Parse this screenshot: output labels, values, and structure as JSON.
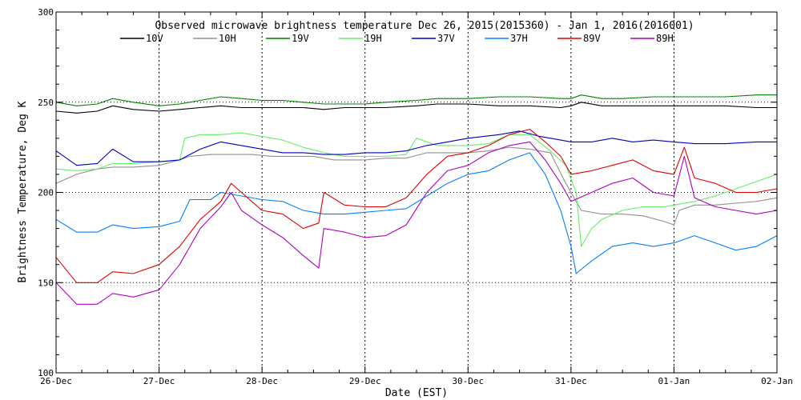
{
  "chart_data": {
    "type": "line",
    "title": "Observed microwave brightness temperature Dec 26, 2015(2015360) - Jan  1, 2016(2016001)",
    "xlabel": "Date (EST)",
    "ylabel": "Brightness Temperature, Deg K",
    "ylim": [
      100,
      300
    ],
    "yticks": [
      100,
      150,
      200,
      250,
      300
    ],
    "xlim": [
      0,
      7
    ],
    "xtick_labels": [
      "26-Dec",
      "27-Dec",
      "28-Dec",
      "29-Dec",
      "30-Dec",
      "31-Dec",
      "01-Jan",
      "02-Jan"
    ],
    "grid": "dotted",
    "legend_position": "top",
    "series": [
      {
        "name": "10V",
        "color": "#000000",
        "points": [
          [
            0,
            245
          ],
          [
            0.2,
            244
          ],
          [
            0.4,
            245
          ],
          [
            0.55,
            248
          ],
          [
            0.75,
            246
          ],
          [
            1,
            245
          ],
          [
            1.2,
            246
          ],
          [
            1.4,
            247
          ],
          [
            1.6,
            248
          ],
          [
            1.8,
            247
          ],
          [
            2,
            247
          ],
          [
            2.2,
            247
          ],
          [
            2.4,
            247
          ],
          [
            2.6,
            246
          ],
          [
            2.8,
            247
          ],
          [
            3,
            247
          ],
          [
            3.2,
            247
          ],
          [
            3.5,
            248
          ],
          [
            3.7,
            249
          ],
          [
            4,
            249
          ],
          [
            4.3,
            248
          ],
          [
            4.6,
            248
          ],
          [
            4.9,
            247
          ],
          [
            5,
            248
          ],
          [
            5.1,
            250
          ],
          [
            5.3,
            248
          ],
          [
            5.5,
            248
          ],
          [
            5.8,
            248
          ],
          [
            6,
            248
          ],
          [
            6.2,
            248
          ],
          [
            6.5,
            248
          ],
          [
            6.8,
            247
          ],
          [
            7,
            247
          ]
        ]
      },
      {
        "name": "10H",
        "color": "#909090",
        "points": [
          [
            0,
            205
          ],
          [
            0.2,
            210
          ],
          [
            0.4,
            213
          ],
          [
            0.55,
            214
          ],
          [
            0.75,
            214
          ],
          [
            1,
            215
          ],
          [
            1.2,
            218
          ],
          [
            1.3,
            220
          ],
          [
            1.5,
            221
          ],
          [
            1.7,
            221
          ],
          [
            1.9,
            221
          ],
          [
            2.1,
            220
          ],
          [
            2.3,
            220
          ],
          [
            2.5,
            220
          ],
          [
            2.7,
            218
          ],
          [
            3,
            218
          ],
          [
            3.2,
            219
          ],
          [
            3.4,
            219
          ],
          [
            3.6,
            222
          ],
          [
            3.8,
            222
          ],
          [
            4,
            222
          ],
          [
            4.2,
            223
          ],
          [
            4.4,
            225
          ],
          [
            4.6,
            224
          ],
          [
            4.8,
            222
          ],
          [
            4.95,
            205
          ],
          [
            5.1,
            190
          ],
          [
            5.3,
            188
          ],
          [
            5.5,
            188
          ],
          [
            5.7,
            187
          ],
          [
            5.9,
            184
          ],
          [
            6,
            182
          ],
          [
            6.05,
            190
          ],
          [
            6.2,
            193
          ],
          [
            6.4,
            193
          ],
          [
            6.6,
            194
          ],
          [
            6.8,
            195
          ],
          [
            7,
            197
          ]
        ]
      },
      {
        "name": "19V",
        "color": "#008000",
        "points": [
          [
            0,
            250
          ],
          [
            0.2,
            248
          ],
          [
            0.4,
            249
          ],
          [
            0.55,
            252
          ],
          [
            0.75,
            250
          ],
          [
            1,
            248
          ],
          [
            1.2,
            249
          ],
          [
            1.4,
            251
          ],
          [
            1.6,
            253
          ],
          [
            1.8,
            252
          ],
          [
            2,
            251
          ],
          [
            2.2,
            251
          ],
          [
            2.4,
            250
          ],
          [
            2.6,
            249
          ],
          [
            2.8,
            249
          ],
          [
            3,
            249
          ],
          [
            3.2,
            250
          ],
          [
            3.5,
            251
          ],
          [
            3.7,
            252
          ],
          [
            4,
            252
          ],
          [
            4.3,
            253
          ],
          [
            4.6,
            253
          ],
          [
            4.9,
            252
          ],
          [
            5,
            252
          ],
          [
            5.1,
            254
          ],
          [
            5.3,
            252
          ],
          [
            5.5,
            252
          ],
          [
            5.8,
            253
          ],
          [
            6,
            253
          ],
          [
            6.2,
            253
          ],
          [
            6.5,
            253
          ],
          [
            6.8,
            254
          ],
          [
            7,
            254
          ]
        ]
      },
      {
        "name": "19H",
        "color": "#66ee66",
        "points": [
          [
            0,
            213
          ],
          [
            0.2,
            212
          ],
          [
            0.4,
            213
          ],
          [
            0.55,
            216
          ],
          [
            0.75,
            216
          ],
          [
            1,
            217
          ],
          [
            1.2,
            218
          ],
          [
            1.25,
            230
          ],
          [
            1.4,
            232
          ],
          [
            1.6,
            232
          ],
          [
            1.8,
            233
          ],
          [
            2,
            231
          ],
          [
            2.2,
            229
          ],
          [
            2.4,
            225
          ],
          [
            2.6,
            222
          ],
          [
            2.8,
            220
          ],
          [
            3,
            220
          ],
          [
            3.2,
            220
          ],
          [
            3.4,
            221
          ],
          [
            3.5,
            230
          ],
          [
            3.7,
            226
          ],
          [
            4,
            226
          ],
          [
            4.2,
            227
          ],
          [
            4.4,
            232
          ],
          [
            4.6,
            232
          ],
          [
            4.8,
            223
          ],
          [
            4.95,
            215
          ],
          [
            5.05,
            200
          ],
          [
            5.1,
            170
          ],
          [
            5.2,
            180
          ],
          [
            5.3,
            185
          ],
          [
            5.5,
            190
          ],
          [
            5.7,
            192
          ],
          [
            5.9,
            192
          ],
          [
            6,
            193
          ],
          [
            6.2,
            195
          ],
          [
            6.4,
            198
          ],
          [
            6.6,
            202
          ],
          [
            6.8,
            206
          ],
          [
            7,
            210
          ]
        ]
      },
      {
        "name": "37V",
        "color": "#0000c0",
        "points": [
          [
            0,
            223
          ],
          [
            0.2,
            215
          ],
          [
            0.4,
            216
          ],
          [
            0.55,
            224
          ],
          [
            0.75,
            217
          ],
          [
            1,
            217
          ],
          [
            1.2,
            218
          ],
          [
            1.4,
            224
          ],
          [
            1.6,
            228
          ],
          [
            1.8,
            226
          ],
          [
            2,
            224
          ],
          [
            2.2,
            222
          ],
          [
            2.4,
            222
          ],
          [
            2.6,
            221
          ],
          [
            2.8,
            221
          ],
          [
            3,
            222
          ],
          [
            3.2,
            222
          ],
          [
            3.4,
            223
          ],
          [
            3.6,
            226
          ],
          [
            3.8,
            228
          ],
          [
            4,
            230
          ],
          [
            4.3,
            232
          ],
          [
            4.5,
            234
          ],
          [
            4.7,
            231
          ],
          [
            4.9,
            229
          ],
          [
            5,
            228
          ],
          [
            5.2,
            228
          ],
          [
            5.4,
            230
          ],
          [
            5.6,
            228
          ],
          [
            5.8,
            229
          ],
          [
            6,
            228
          ],
          [
            6.2,
            227
          ],
          [
            6.5,
            227
          ],
          [
            6.8,
            228
          ],
          [
            7,
            228
          ]
        ]
      },
      {
        "name": "37H",
        "color": "#0080ff",
        "points": [
          [
            0,
            185
          ],
          [
            0.2,
            178
          ],
          [
            0.4,
            178
          ],
          [
            0.55,
            182
          ],
          [
            0.75,
            180
          ],
          [
            1,
            181
          ],
          [
            1.2,
            184
          ],
          [
            1.3,
            196
          ],
          [
            1.5,
            196
          ],
          [
            1.6,
            200
          ],
          [
            1.8,
            198
          ],
          [
            2,
            196
          ],
          [
            2.2,
            195
          ],
          [
            2.4,
            190
          ],
          [
            2.6,
            188
          ],
          [
            2.8,
            188
          ],
          [
            3,
            189
          ],
          [
            3.2,
            190
          ],
          [
            3.4,
            191
          ],
          [
            3.6,
            198
          ],
          [
            3.8,
            205
          ],
          [
            4,
            210
          ],
          [
            4.2,
            212
          ],
          [
            4.4,
            218
          ],
          [
            4.6,
            222
          ],
          [
            4.75,
            210
          ],
          [
            4.9,
            190
          ],
          [
            5,
            170
          ],
          [
            5.05,
            155
          ],
          [
            5.2,
            162
          ],
          [
            5.4,
            170
          ],
          [
            5.6,
            172
          ],
          [
            5.8,
            170
          ],
          [
            6,
            172
          ],
          [
            6.2,
            176
          ],
          [
            6.4,
            172
          ],
          [
            6.6,
            168
          ],
          [
            6.8,
            170
          ],
          [
            7,
            176
          ]
        ]
      },
      {
        "name": "89V",
        "color": "#dd0000",
        "points": [
          [
            0,
            164
          ],
          [
            0.2,
            150
          ],
          [
            0.4,
            150
          ],
          [
            0.55,
            156
          ],
          [
            0.75,
            155
          ],
          [
            1,
            160
          ],
          [
            1.2,
            170
          ],
          [
            1.4,
            185
          ],
          [
            1.6,
            195
          ],
          [
            1.7,
            205
          ],
          [
            1.8,
            200
          ],
          [
            2,
            190
          ],
          [
            2.2,
            188
          ],
          [
            2.4,
            180
          ],
          [
            2.55,
            183
          ],
          [
            2.6,
            200
          ],
          [
            2.8,
            193
          ],
          [
            3,
            192
          ],
          [
            3.2,
            192
          ],
          [
            3.4,
            197
          ],
          [
            3.6,
            210
          ],
          [
            3.8,
            220
          ],
          [
            4,
            222
          ],
          [
            4.2,
            226
          ],
          [
            4.4,
            232
          ],
          [
            4.6,
            235
          ],
          [
            4.75,
            228
          ],
          [
            4.9,
            220
          ],
          [
            5,
            210
          ],
          [
            5.2,
            212
          ],
          [
            5.4,
            215
          ],
          [
            5.6,
            218
          ],
          [
            5.8,
            212
          ],
          [
            6,
            210
          ],
          [
            6.1,
            225
          ],
          [
            6.2,
            208
          ],
          [
            6.4,
            205
          ],
          [
            6.6,
            200
          ],
          [
            6.8,
            200
          ],
          [
            7,
            202
          ]
        ]
      },
      {
        "name": "89H",
        "color": "#b000c0",
        "points": [
          [
            0,
            150
          ],
          [
            0.2,
            138
          ],
          [
            0.4,
            138
          ],
          [
            0.55,
            144
          ],
          [
            0.75,
            142
          ],
          [
            1,
            146
          ],
          [
            1.2,
            160
          ],
          [
            1.4,
            180
          ],
          [
            1.6,
            192
          ],
          [
            1.7,
            200
          ],
          [
            1.8,
            190
          ],
          [
            2,
            182
          ],
          [
            2.2,
            175
          ],
          [
            2.4,
            165
          ],
          [
            2.55,
            158
          ],
          [
            2.6,
            180
          ],
          [
            2.8,
            178
          ],
          [
            3,
            175
          ],
          [
            3.2,
            176
          ],
          [
            3.4,
            182
          ],
          [
            3.6,
            200
          ],
          [
            3.8,
            212
          ],
          [
            4,
            215
          ],
          [
            4.2,
            222
          ],
          [
            4.4,
            226
          ],
          [
            4.6,
            228
          ],
          [
            4.75,
            218
          ],
          [
            4.9,
            205
          ],
          [
            5,
            195
          ],
          [
            5.2,
            200
          ],
          [
            5.4,
            205
          ],
          [
            5.6,
            208
          ],
          [
            5.8,
            200
          ],
          [
            6,
            198
          ],
          [
            6.1,
            220
          ],
          [
            6.2,
            197
          ],
          [
            6.4,
            192
          ],
          [
            6.6,
            190
          ],
          [
            6.8,
            188
          ],
          [
            7,
            190
          ]
        ]
      }
    ]
  }
}
